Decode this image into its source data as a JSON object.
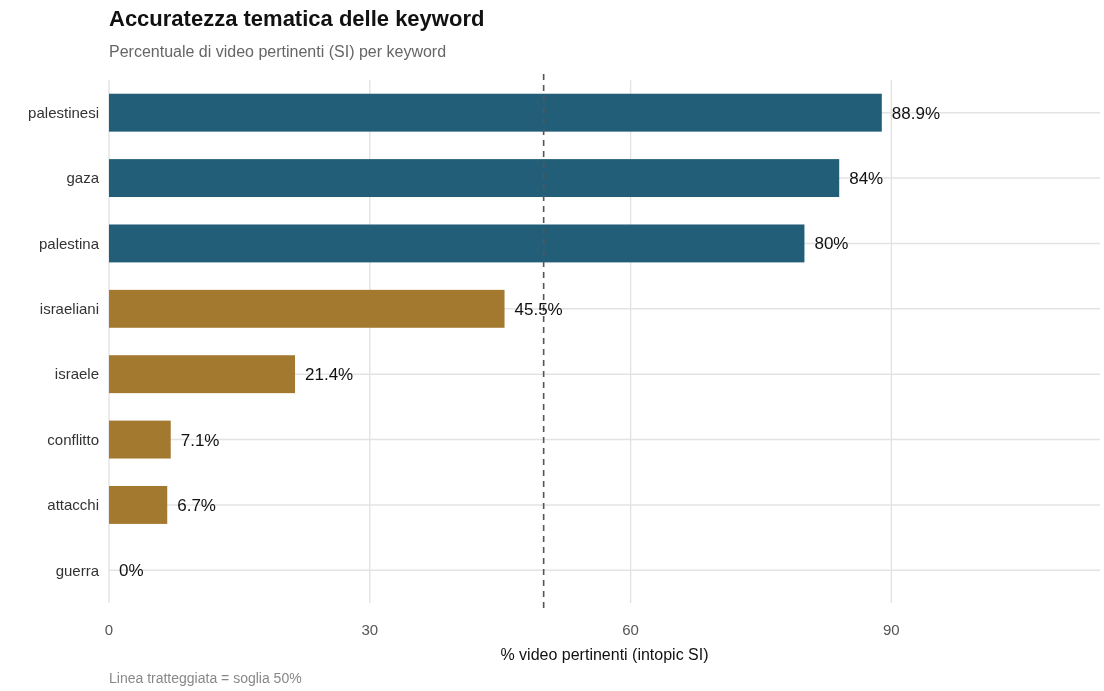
{
  "chart_data": {
    "type": "bar",
    "orientation": "horizontal",
    "title": "Accuratezza tematica delle keyword",
    "subtitle": "Percentuale di video pertinenti (SI) per keyword",
    "xlabel": "% video pertinenti (intopic SI)",
    "categories": [
      "palestinesi",
      "gaza",
      "palestina",
      "israeliani",
      "israele",
      "conflitto",
      "attacchi",
      "guerra"
    ],
    "values": [
      88.9,
      84,
      80,
      45.5,
      21.4,
      7.1,
      6.7,
      0
    ],
    "colors": [
      "#235e78",
      "#235e78",
      "#235e78",
      "#a3782f",
      "#a3782f",
      "#a3782f",
      "#a3782f",
      "#a3782f"
    ],
    "value_labels": [
      "88.9%",
      "84%",
      "80%",
      "45.5%",
      "21.4%",
      "7.1%",
      "6.7%",
      "0%"
    ],
    "xlim": [
      0,
      114
    ],
    "xticks": [
      0,
      30,
      60,
      90
    ],
    "grid": true,
    "ref_lines": [
      {
        "axis": "x",
        "value": 50,
        "color": "#555555",
        "line_style": "dashed"
      }
    ],
    "annotations": [
      "Linea tratteggiata = soglia 50%"
    ]
  }
}
